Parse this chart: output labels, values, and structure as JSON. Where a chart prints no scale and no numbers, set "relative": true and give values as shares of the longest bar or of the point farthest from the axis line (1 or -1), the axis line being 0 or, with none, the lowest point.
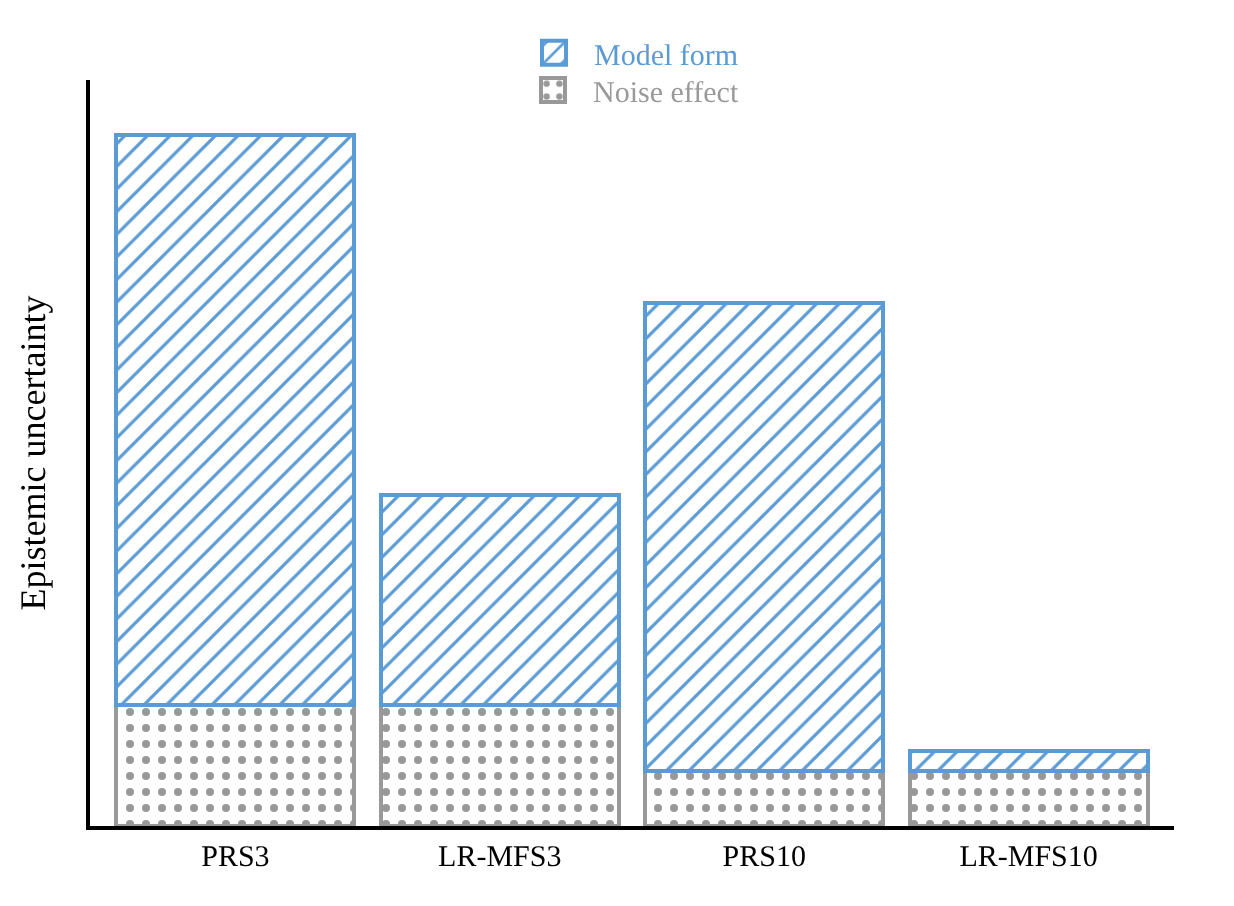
{
  "chart_data": {
    "type": "bar",
    "stacked": true,
    "relative": true,
    "ylabel": "Epistemic uncertainty",
    "categories": [
      "PRS3",
      "LR-MFS3",
      "PRS10",
      "LR-MFS10"
    ],
    "series": [
      {
        "name": "Noise effect",
        "color": "#999999",
        "values": [
          0.175,
          0.175,
          0.079,
          0.079
        ]
      },
      {
        "name": "Model form",
        "color": "#5b9bd5",
        "values": [
          0.825,
          0.304,
          0.678,
          0.029
        ]
      }
    ],
    "legend": "top"
  }
}
